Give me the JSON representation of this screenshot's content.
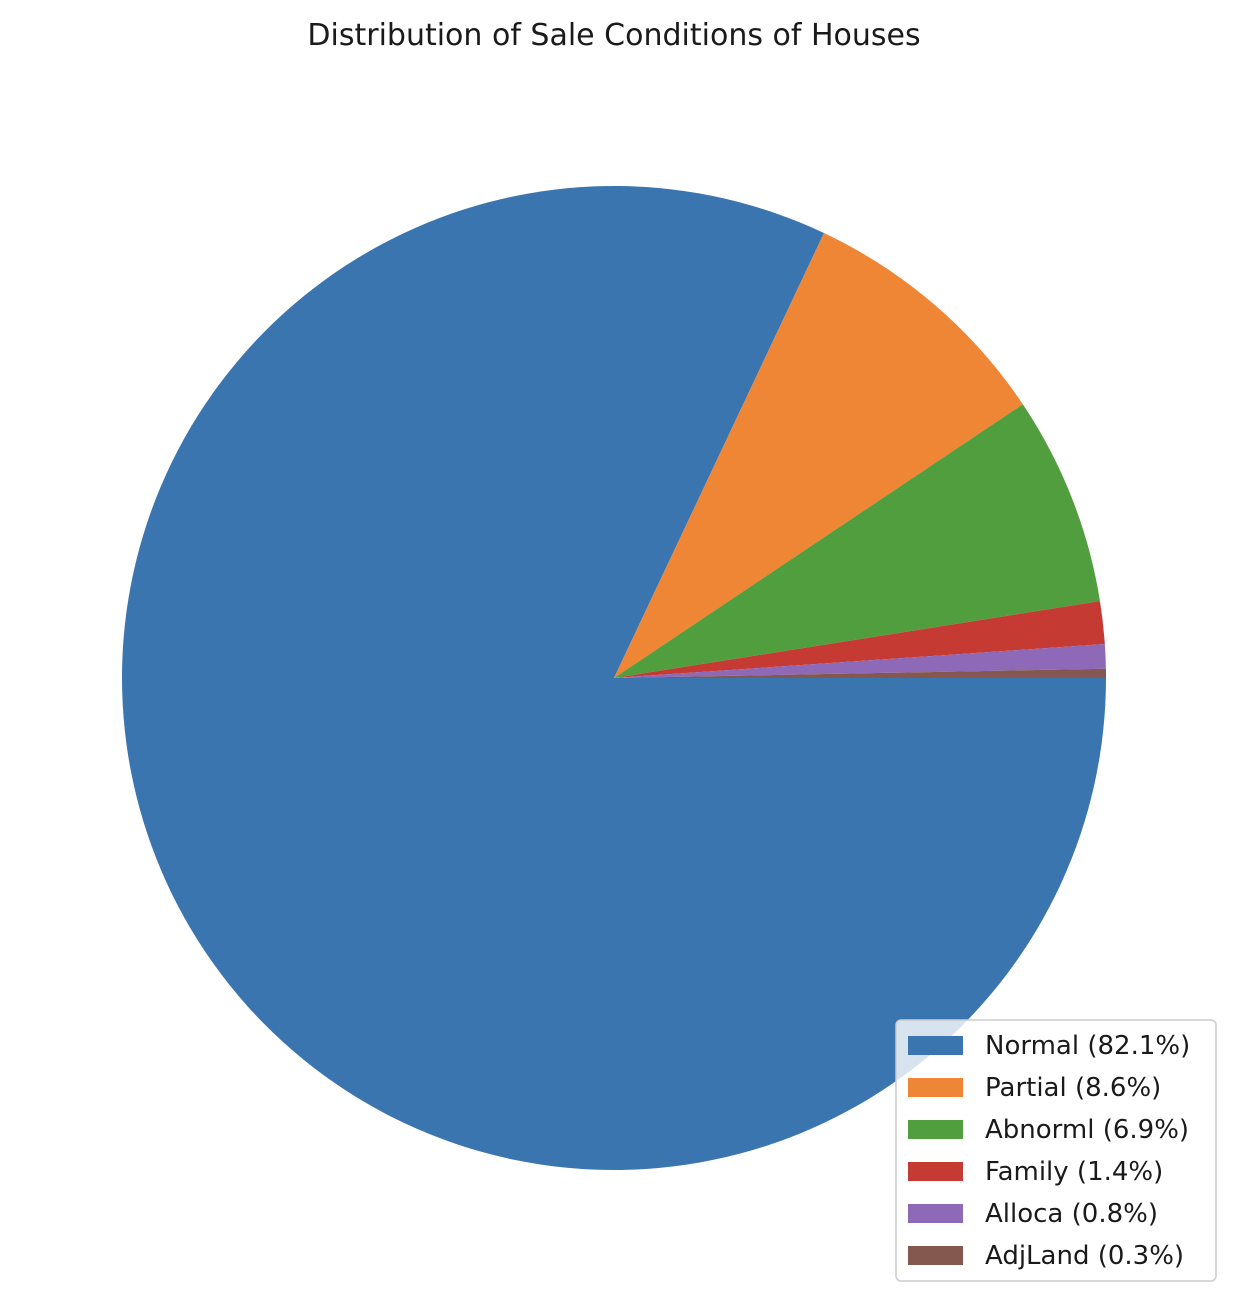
{
  "chart_data": {
    "type": "pie",
    "title": "Distribution of Sale Conditions of Houses",
    "categories": [
      "Normal",
      "Partial",
      "Abnorml",
      "Family",
      "Alloca",
      "AdjLand"
    ],
    "values": [
      82.1,
      8.6,
      6.9,
      1.4,
      0.8,
      0.3
    ],
    "labels": [
      "Normal (82.1%)",
      "Partial (8.6%)",
      "Abnorml (6.9%)",
      "Family (1.4%)",
      "Alloca (0.8%)",
      "AdjLand (0.3%)"
    ],
    "colors": [
      "#3b75af",
      "#ef8636",
      "#519e3e",
      "#c53a32",
      "#8d69b8",
      "#84584e"
    ],
    "start_angle_deg": 0,
    "direction": "clockwise",
    "legend_position": "lower-right"
  }
}
